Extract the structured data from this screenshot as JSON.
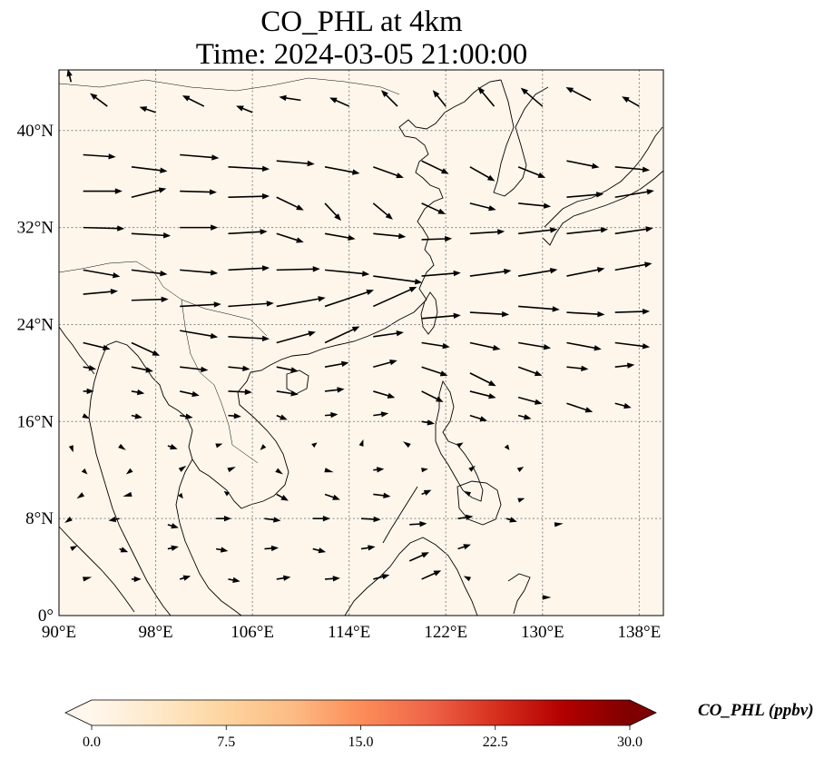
{
  "title": {
    "line1": "CO_PHL at 4km",
    "line2": "Time: 2024-03-05 21:00:00"
  },
  "map": {
    "lon_range": [
      90,
      140
    ],
    "lat_range": [
      0,
      45
    ],
    "background_color": "#fef6eb",
    "grid": true,
    "lon_ticks": [
      {
        "value": 90,
        "label": "90°E"
      },
      {
        "value": 98,
        "label": "98°E"
      },
      {
        "value": 106,
        "label": "106°E"
      },
      {
        "value": 114,
        "label": "114°E"
      },
      {
        "value": 122,
        "label": "122°E"
      },
      {
        "value": 130,
        "label": "130°E"
      },
      {
        "value": 138,
        "label": "138°E"
      }
    ],
    "lat_ticks": [
      {
        "value": 0,
        "label": "0°"
      },
      {
        "value": 8,
        "label": "8°N"
      },
      {
        "value": 16,
        "label": "16°N"
      },
      {
        "value": 24,
        "label": "24°N"
      },
      {
        "value": 32,
        "label": "32°N"
      },
      {
        "value": 40,
        "label": "40°N"
      }
    ]
  },
  "colorbar": {
    "label": "CO_PHL (ppbv)",
    "min": 0,
    "max": 30,
    "colormap": "OrRd",
    "colors": [
      "#fff7ec",
      "#fee8c8",
      "#fdd49e",
      "#fdbb84",
      "#fc8d59",
      "#ef6548",
      "#d7301f",
      "#b30000",
      "#7f0000"
    ],
    "ticks": [
      {
        "value": 0,
        "label": "0.0"
      },
      {
        "value": 7.5,
        "label": "7.5"
      },
      {
        "value": 15,
        "label": "15.0"
      },
      {
        "value": 22.5,
        "label": "22.5"
      },
      {
        "value": 30,
        "label": "30.0"
      }
    ]
  },
  "wind_field": {
    "description_units": "relative arrow length and direction",
    "vectors": [
      [
        91,
        44,
        -0.3,
        1.2
      ],
      [
        94,
        42,
        -1.6,
        1.2
      ],
      [
        98,
        41.5,
        -1.5,
        0.5
      ],
      [
        102,
        42,
        -2,
        1
      ],
      [
        106,
        41.5,
        -1.5,
        0.6
      ],
      [
        110,
        42.5,
        -2,
        0.3
      ],
      [
        114,
        42,
        -1.8,
        0.8
      ],
      [
        118,
        42,
        -1.5,
        1.5
      ],
      [
        122,
        42,
        -1.2,
        1.5
      ],
      [
        126,
        42,
        -1.5,
        1.8
      ],
      [
        130,
        42,
        -2,
        1.7
      ],
      [
        134,
        42.5,
        -2.3,
        1.2
      ],
      [
        138,
        42,
        -1.6,
        0.9
      ],
      [
        92,
        38,
        3,
        -0.2
      ],
      [
        96,
        37,
        3.3,
        -0.4
      ],
      [
        100,
        38,
        3.6,
        -0.3
      ],
      [
        104,
        37,
        3.8,
        -0.2
      ],
      [
        108,
        37.5,
        3.5,
        -0.3
      ],
      [
        112,
        37,
        3.2,
        -0.6
      ],
      [
        116,
        37,
        2.8,
        -1
      ],
      [
        120,
        37.5,
        2.5,
        -1.2
      ],
      [
        124,
        37,
        2.3,
        -1.3
      ],
      [
        128,
        37,
        2.5,
        -1
      ],
      [
        132,
        37.5,
        3,
        -0.6
      ],
      [
        136,
        37,
        3.2,
        -0.3
      ],
      [
        92,
        35,
        3.6,
        0
      ],
      [
        96,
        34.5,
        3.2,
        0.8
      ],
      [
        100,
        35,
        3.4,
        -0.1
      ],
      [
        104,
        34.5,
        3.8,
        0.1
      ],
      [
        108,
        34.5,
        2.5,
        -1.2
      ],
      [
        112,
        34,
        1.5,
        -1.6
      ],
      [
        116,
        34,
        1.8,
        -1.5
      ],
      [
        120,
        34,
        2.2,
        -1
      ],
      [
        124,
        34,
        2.4,
        -0.6
      ],
      [
        128,
        34,
        3,
        -0.3
      ],
      [
        132,
        34.5,
        3.4,
        0.3
      ],
      [
        136,
        34.5,
        3.6,
        0.6
      ],
      [
        92,
        32,
        3.8,
        -0.1
      ],
      [
        96,
        31.5,
        3.6,
        -0.2
      ],
      [
        100,
        32,
        3.5,
        0
      ],
      [
        104,
        31.5,
        3.6,
        0.2
      ],
      [
        108,
        31.5,
        2.5,
        -0.8
      ],
      [
        112,
        31.5,
        2.8,
        -0.5
      ],
      [
        116,
        31.5,
        3,
        -0.3
      ],
      [
        120,
        31,
        2.8,
        0.1
      ],
      [
        124,
        31.5,
        3.2,
        0.2
      ],
      [
        128,
        31.5,
        3.6,
        0.4
      ],
      [
        132,
        31.5,
        3.8,
        0.4
      ],
      [
        136,
        31.5,
        3.5,
        0.5
      ],
      [
        92,
        28.5,
        3.4,
        -0.6
      ],
      [
        96,
        28.5,
        3.3,
        -0.4
      ],
      [
        100,
        28.5,
        3.5,
        -0.3
      ],
      [
        104,
        28.5,
        3.8,
        0.2
      ],
      [
        108,
        28.5,
        4,
        0.1
      ],
      [
        112,
        28.5,
        4.1,
        -0.4
      ],
      [
        116,
        28,
        4.5,
        -0.6
      ],
      [
        120,
        28,
        3.6,
        0.3
      ],
      [
        124,
        28,
        3.8,
        0.5
      ],
      [
        128,
        28,
        3.6,
        0.6
      ],
      [
        132,
        28,
        3.5,
        0.7
      ],
      [
        136,
        28.5,
        3.4,
        0.6
      ],
      [
        92,
        26.5,
        3.2,
        0.3
      ],
      [
        96,
        26,
        3.4,
        0.1
      ],
      [
        100,
        25.5,
        3.8,
        0.2
      ],
      [
        104,
        25.5,
        4.2,
        0.3
      ],
      [
        108,
        25.5,
        4.5,
        0.8
      ],
      [
        112,
        25.5,
        4.5,
        1.5
      ],
      [
        116,
        25.5,
        4,
        1.8
      ],
      [
        120,
        24.5,
        3.6,
        0.3
      ],
      [
        124,
        25,
        3.6,
        -0.2
      ],
      [
        128,
        25.5,
        3.8,
        -0.3
      ],
      [
        132,
        25,
        3.5,
        -0.2
      ],
      [
        136,
        25,
        3.2,
        0.1
      ],
      [
        92,
        22.5,
        2.5,
        -0.6
      ],
      [
        96,
        22.5,
        2.6,
        -1.2
      ],
      [
        100,
        23.5,
        3.5,
        -0.6
      ],
      [
        104,
        23,
        3.8,
        -0.2
      ],
      [
        108,
        22.5,
        3.6,
        1
      ],
      [
        112,
        22.5,
        3.2,
        1.5
      ],
      [
        116,
        23,
        2.8,
        0.4
      ],
      [
        120,
        22.5,
        2.6,
        -0.4
      ],
      [
        124,
        22.5,
        2.8,
        -0.6
      ],
      [
        128,
        22.5,
        3,
        -0.5
      ],
      [
        132,
        22.5,
        3.2,
        -0.6
      ],
      [
        136,
        22.5,
        3.2,
        -0.4
      ],
      [
        92,
        20.5,
        1.2,
        -0.2
      ],
      [
        96,
        20.5,
        2,
        -0.4
      ],
      [
        100,
        20.5,
        2.6,
        -0.3
      ],
      [
        104,
        20.5,
        2,
        -0.2
      ],
      [
        108,
        20.5,
        2,
        -0.4
      ],
      [
        112,
        20.5,
        2.2,
        0.4
      ],
      [
        116,
        20.5,
        2.2,
        0.6
      ],
      [
        120,
        20.5,
        2.4,
        -0.8
      ],
      [
        124,
        20,
        2.4,
        -1.2
      ],
      [
        128,
        20.5,
        2.2,
        -0.8
      ],
      [
        132,
        20.5,
        2,
        -0.2
      ],
      [
        136,
        20.5,
        1.8,
        0.2
      ],
      [
        92,
        18.5,
        1,
        0
      ],
      [
        96,
        18.5,
        1.2,
        -0.2
      ],
      [
        100,
        18.5,
        1.8,
        -0.4
      ],
      [
        104,
        18.5,
        2.2,
        -0.1
      ],
      [
        108,
        18.5,
        2,
        -0.3
      ],
      [
        112,
        18.5,
        1.8,
        0.2
      ],
      [
        116,
        18.5,
        2,
        -0.6
      ],
      [
        120,
        18.5,
        2,
        -1
      ],
      [
        124,
        18.5,
        2.4,
        -0.6
      ],
      [
        128,
        18,
        2.2,
        -0.6
      ],
      [
        132,
        17.5,
        2.4,
        -0.8
      ],
      [
        136,
        17.5,
        1.5,
        -0.4
      ],
      [
        92,
        16.5,
        0.6,
        -0.3
      ],
      [
        96,
        16.5,
        1,
        -0.2
      ],
      [
        100,
        16.5,
        1.2,
        -0.2
      ],
      [
        104,
        16.5,
        1.2,
        -0.1
      ],
      [
        108,
        16.5,
        1,
        -0.4
      ],
      [
        112,
        16.5,
        1.2,
        0.1
      ],
      [
        116,
        16.5,
        1.4,
        0.2
      ],
      [
        120,
        16,
        1.2,
        -0.2
      ],
      [
        124,
        16.5,
        1.6,
        -0.5
      ],
      [
        128,
        16.5,
        1.2,
        -0.3
      ],
      [
        91,
        14,
        0.2,
        -0.6
      ],
      [
        95,
        14,
        0.6,
        -0.4
      ],
      [
        99,
        14,
        0.9,
        -0.3
      ],
      [
        103,
        14,
        0.6,
        0.2
      ],
      [
        107,
        14,
        -0.4,
        -0.4
      ],
      [
        111,
        14,
        0.4,
        0.3
      ],
      [
        115,
        14,
        0.2,
        0.6
      ],
      [
        119,
        14,
        -0.6,
        0.4
      ],
      [
        123,
        14,
        0.5,
        0.3
      ],
      [
        127,
        14,
        0.3,
        -0.4
      ],
      [
        92,
        12,
        0.4,
        -0.4
      ],
      [
        96,
        12,
        -0.5,
        -0.4
      ],
      [
        100,
        12,
        0.6,
        0.4
      ],
      [
        104,
        12,
        0.7,
        0.3
      ],
      [
        108,
        12,
        0.6,
        -0.4
      ],
      [
        112,
        12,
        0.8,
        -0.2
      ],
      [
        116,
        12,
        1,
        0.1
      ],
      [
        120,
        12,
        0.6,
        0.1
      ],
      [
        124,
        12,
        0.5,
        0.4
      ],
      [
        128,
        12,
        0.5,
        0.3
      ],
      [
        92,
        10,
        -0.6,
        -0.4
      ],
      [
        96,
        10,
        -0.8,
        -0.2
      ],
      [
        100,
        10,
        0.3,
        -0.4
      ],
      [
        104,
        10,
        -0.4,
        0.3
      ],
      [
        108,
        10,
        1.1,
        -0.6
      ],
      [
        112,
        10,
        1.4,
        -0.5
      ],
      [
        116,
        10,
        1.6,
        -0.2
      ],
      [
        120,
        10,
        0.9,
        0.4
      ],
      [
        124,
        10,
        -0.6,
        0.3
      ],
      [
        128,
        9.5,
        0.6,
        0.2
      ],
      [
        91,
        8,
        -0.6,
        -0.4
      ],
      [
        95,
        8,
        -1,
        -0.2
      ],
      [
        99,
        7.5,
        1,
        -0.3
      ],
      [
        103,
        8,
        1.4,
        0
      ],
      [
        107,
        8,
        1.5,
        -0.2
      ],
      [
        111,
        8,
        1.6,
        0
      ],
      [
        115,
        8,
        1.8,
        -0.1
      ],
      [
        119,
        7.5,
        1.6,
        0.1
      ],
      [
        123,
        8,
        1.4,
        0.2
      ],
      [
        127,
        8,
        1,
        -0.3
      ],
      [
        131,
        7.5,
        0.8,
        0.1
      ],
      [
        91,
        5.5,
        0.6,
        0.3
      ],
      [
        95,
        5.5,
        0.8,
        -0.3
      ],
      [
        99,
        5.5,
        1,
        0.2
      ],
      [
        103,
        5.5,
        1.1,
        -0.2
      ],
      [
        107,
        5.5,
        1.3,
        0.1
      ],
      [
        111,
        5.5,
        1.2,
        -0.3
      ],
      [
        115,
        5.5,
        1.3,
        0.2
      ],
      [
        119,
        4.5,
        1.8,
        0.8
      ],
      [
        123,
        5.5,
        1.2,
        0.4
      ],
      [
        92,
        3,
        0.8,
        0.2
      ],
      [
        96,
        3,
        0.9,
        0
      ],
      [
        100,
        3,
        1,
        0.3
      ],
      [
        104,
        3,
        1.1,
        -0.2
      ],
      [
        108,
        3,
        1.3,
        0.2
      ],
      [
        112,
        3,
        1.4,
        0.1
      ],
      [
        116,
        3,
        1.5,
        0.4
      ],
      [
        120,
        3,
        1.8,
        0.8
      ],
      [
        124,
        3,
        -0.6,
        0.3
      ],
      [
        130,
        1.5,
        0.8,
        0
      ]
    ]
  }
}
